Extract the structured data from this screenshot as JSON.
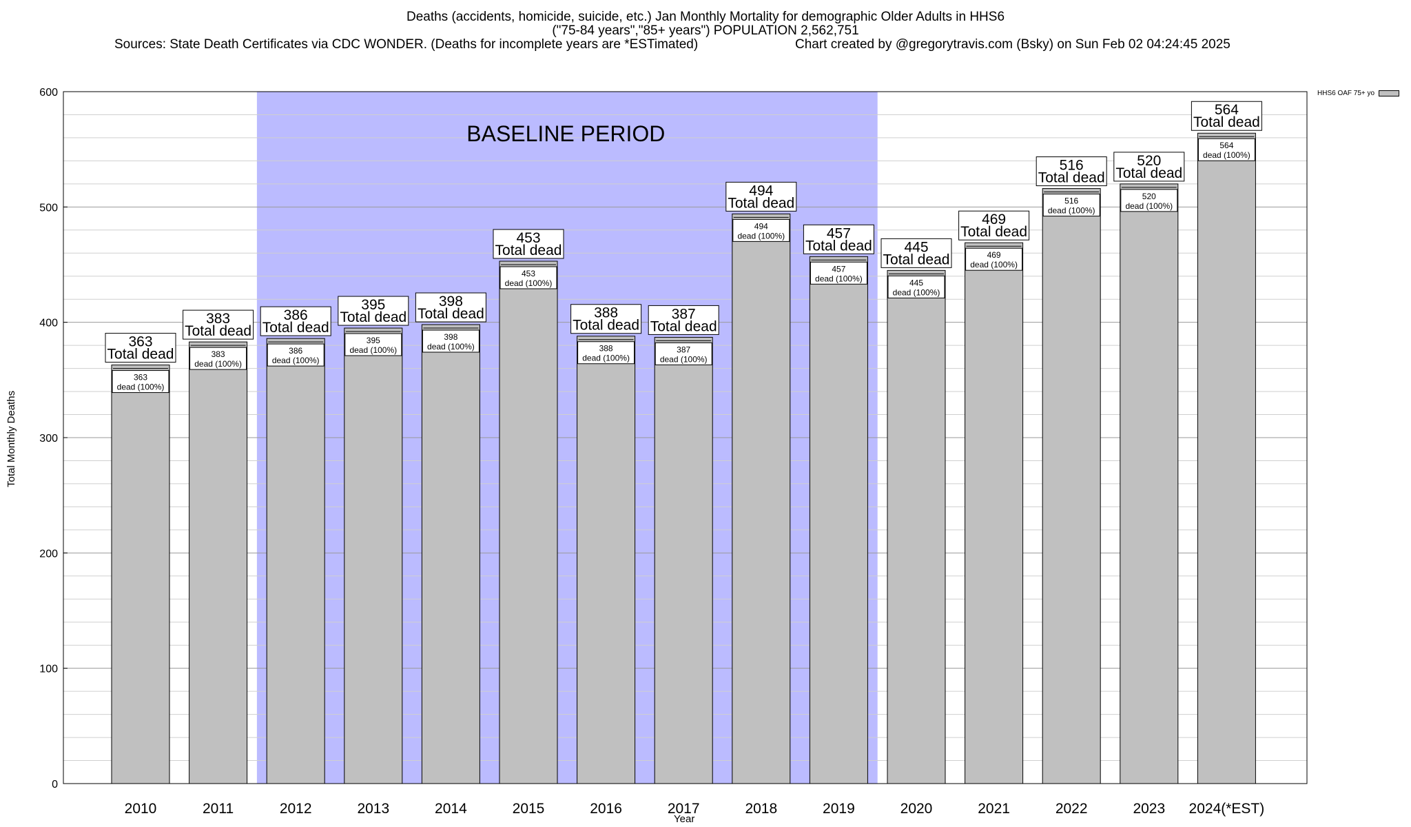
{
  "header": {
    "title_line1": "Deaths (accidents, homicide, suicide, etc.) Jan Monthly Mortality for demographic Older Adults in HHS6",
    "title_line2": "(\"75-84 years\",\"85+ years\") POPULATION 2,562,751",
    "sources": "Sources: State Death Certificates via CDC WONDER. (Deaths for incomplete years are *ESTimated)",
    "credit": "Chart created by @gregorytravis.com (Bsky) on Sun Feb 02 04:24:45 2025"
  },
  "chart_data": {
    "type": "bar",
    "title": "Deaths (accidents, homicide, suicide, etc.) Jan Monthly Mortality for demographic Older Adults in HHS6",
    "xlabel": "Year",
    "ylabel": "Total Monthly Deaths",
    "ylim": [
      0,
      600
    ],
    "yticks": [
      0,
      100,
      200,
      300,
      400,
      500,
      600
    ],
    "grid": true,
    "legend_position": "top-right",
    "categories": [
      "2010",
      "2011",
      "2012",
      "2013",
      "2014",
      "2015",
      "2016",
      "2017",
      "2018",
      "2019",
      "2020",
      "2021",
      "2022",
      "2023",
      "2024(*EST)"
    ],
    "series": [
      {
        "name": "HHS6 OAF 75+ yo",
        "values": [
          363,
          383,
          386,
          395,
          398,
          453,
          388,
          387,
          494,
          457,
          445,
          469,
          516,
          520,
          564
        ]
      }
    ],
    "top_label_suffix": "Total dead",
    "inner_label_suffix": "dead (100%)",
    "baseline_period": {
      "label": "BASELINE PERIOD",
      "start": "2012",
      "end": "2019",
      "color": "#bbbbff"
    },
    "bar_color": "#c0c0c0"
  }
}
